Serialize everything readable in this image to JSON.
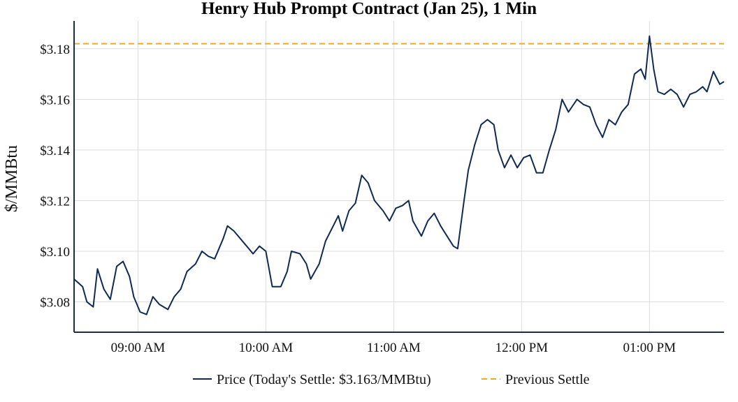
{
  "chart_data": {
    "type": "line",
    "title": "Henry Hub Prompt Contract (Jan 25), 1 Min",
    "xlabel": "",
    "ylabel": "$/MMBtu",
    "x_ticks": [
      "09:00 AM",
      "10:00 AM",
      "11:00 AM",
      "12:00 PM",
      "01:00 PM"
    ],
    "y_ticks": [
      "$3.08",
      "$3.10",
      "$3.12",
      "$3.14",
      "$3.16",
      "$3.18"
    ],
    "y_tick_values": [
      3.08,
      3.1,
      3.12,
      3.14,
      3.16,
      3.18
    ],
    "x_tick_values": [
      "09:00",
      "10:00",
      "11:00",
      "12:00",
      "13:00"
    ],
    "xlim": [
      "08:30",
      "13:35"
    ],
    "ylim": [
      3.068,
      3.191
    ],
    "grid": true,
    "legend_position": "bottom-center",
    "colors": {
      "price": "#0f2a52",
      "previous_settle": "#f5a623",
      "axis": "#1a2b4c",
      "grid": "#dddddd"
    },
    "series": [
      {
        "name": "Price (Today's Settle: $3.163/MMBtu)",
        "style": "solid",
        "points": [
          [
            "08:30",
            3.089
          ],
          [
            "08:34",
            3.086
          ],
          [
            "08:36",
            3.08
          ],
          [
            "08:39",
            3.078
          ],
          [
            "08:41",
            3.093
          ],
          [
            "08:44",
            3.085
          ],
          [
            "08:47",
            3.081
          ],
          [
            "08:50",
            3.094
          ],
          [
            "08:53",
            3.096
          ],
          [
            "08:56",
            3.09
          ],
          [
            "08:58",
            3.082
          ],
          [
            "09:01",
            3.076
          ],
          [
            "09:04",
            3.075
          ],
          [
            "09:07",
            3.082
          ],
          [
            "09:10",
            3.079
          ],
          [
            "09:14",
            3.077
          ],
          [
            "09:17",
            3.082
          ],
          [
            "09:20",
            3.085
          ],
          [
            "09:23",
            3.092
          ],
          [
            "09:27",
            3.095
          ],
          [
            "09:30",
            3.1
          ],
          [
            "09:33",
            3.098
          ],
          [
            "09:36",
            3.097
          ],
          [
            "09:40",
            3.105
          ],
          [
            "09:42",
            3.11
          ],
          [
            "09:45",
            3.108
          ],
          [
            "09:48",
            3.105
          ],
          [
            "09:51",
            3.102
          ],
          [
            "09:54",
            3.099
          ],
          [
            "09:57",
            3.102
          ],
          [
            "10:00",
            3.1
          ],
          [
            "10:03",
            3.086
          ],
          [
            "10:07",
            3.086
          ],
          [
            "10:10",
            3.092
          ],
          [
            "10:12",
            3.1
          ],
          [
            "10:16",
            3.099
          ],
          [
            "10:19",
            3.095
          ],
          [
            "10:21",
            3.089
          ],
          [
            "10:25",
            3.095
          ],
          [
            "10:28",
            3.104
          ],
          [
            "10:31",
            3.109
          ],
          [
            "10:34",
            3.114
          ],
          [
            "10:36",
            3.108
          ],
          [
            "10:39",
            3.116
          ],
          [
            "10:42",
            3.119
          ],
          [
            "10:45",
            3.13
          ],
          [
            "10:48",
            3.127
          ],
          [
            "10:51",
            3.12
          ],
          [
            "10:55",
            3.116
          ],
          [
            "10:58",
            3.112
          ],
          [
            "11:01",
            3.117
          ],
          [
            "11:04",
            3.118
          ],
          [
            "11:07",
            3.12
          ],
          [
            "11:09",
            3.112
          ],
          [
            "11:13",
            3.106
          ],
          [
            "11:16",
            3.112
          ],
          [
            "11:19",
            3.115
          ],
          [
            "11:22",
            3.11
          ],
          [
            "11:25",
            3.106
          ],
          [
            "11:28",
            3.102
          ],
          [
            "11:30",
            3.101
          ],
          [
            "11:33",
            3.12
          ],
          [
            "11:35",
            3.132
          ],
          [
            "11:38",
            3.142
          ],
          [
            "11:41",
            3.15
          ],
          [
            "11:44",
            3.152
          ],
          [
            "11:47",
            3.15
          ],
          [
            "11:49",
            3.14
          ],
          [
            "11:52",
            3.133
          ],
          [
            "11:55",
            3.138
          ],
          [
            "11:58",
            3.133
          ],
          [
            "12:01",
            3.137
          ],
          [
            "12:04",
            3.138
          ],
          [
            "12:07",
            3.131
          ],
          [
            "12:10",
            3.131
          ],
          [
            "12:13",
            3.14
          ],
          [
            "12:16",
            3.148
          ],
          [
            "12:19",
            3.16
          ],
          [
            "12:22",
            3.155
          ],
          [
            "12:26",
            3.16
          ],
          [
            "12:29",
            3.158
          ],
          [
            "12:32",
            3.157
          ],
          [
            "12:35",
            3.15
          ],
          [
            "12:38",
            3.145
          ],
          [
            "12:41",
            3.152
          ],
          [
            "12:44",
            3.15
          ],
          [
            "12:47",
            3.155
          ],
          [
            "12:50",
            3.158
          ],
          [
            "12:53",
            3.17
          ],
          [
            "12:56",
            3.172
          ],
          [
            "12:58",
            3.168
          ],
          [
            "13:00",
            3.185
          ],
          [
            "13:02",
            3.172
          ],
          [
            "13:04",
            3.163
          ],
          [
            "13:07",
            3.162
          ],
          [
            "13:10",
            3.164
          ],
          [
            "13:13",
            3.162
          ],
          [
            "13:16",
            3.157
          ],
          [
            "13:19",
            3.162
          ],
          [
            "13:22",
            3.163
          ],
          [
            "13:25",
            3.165
          ],
          [
            "13:27",
            3.163
          ],
          [
            "13:30",
            3.171
          ],
          [
            "13:33",
            3.166
          ],
          [
            "13:35",
            3.167
          ]
        ]
      },
      {
        "name": "Previous Settle",
        "style": "dashed",
        "y": 3.182
      }
    ]
  }
}
